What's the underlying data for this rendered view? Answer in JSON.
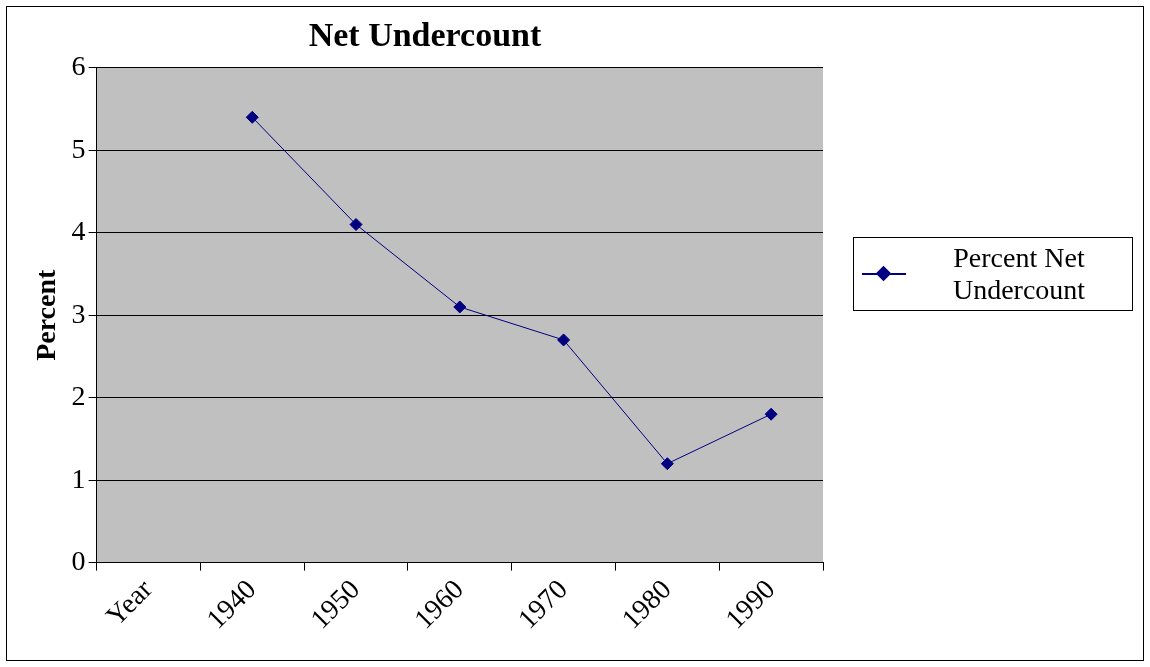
{
  "chart_data": {
    "type": "line",
    "title": "Net Undercount",
    "ylabel": "Percent",
    "categories": [
      "Year",
      "1940",
      "1950",
      "1960",
      "1970",
      "1980",
      "1990"
    ],
    "series": [
      {
        "name": "Percent Net Undercount",
        "color": "#000080",
        "values": [
          null,
          5.4,
          4.1,
          3.1,
          2.7,
          1.2,
          1.8
        ]
      }
    ],
    "ylim": [
      0,
      6
    ],
    "yticks": [
      0,
      1,
      2,
      3,
      4,
      5,
      6
    ],
    "grid": "y",
    "legend": "right",
    "marker": "diamond",
    "line_style": "solid"
  }
}
